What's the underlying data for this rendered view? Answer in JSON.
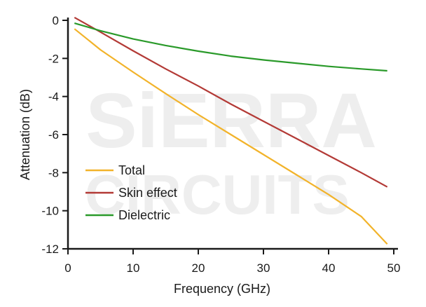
{
  "chart_data": {
    "type": "line",
    "xlabel": "Frequency (GHz)",
    "ylabel": "Attenuation (dB)",
    "xlim": [
      0,
      50
    ],
    "ylim": [
      -12,
      0
    ],
    "x_ticks": [
      "0",
      "10",
      "20",
      "30",
      "40",
      "50"
    ],
    "y_ticks": [
      "0",
      "-2",
      "-4",
      "-6",
      "-8",
      "-10",
      "-12"
    ],
    "grid": false,
    "legend_position": "bottom-left",
    "watermark": [
      "SiERRA",
      "CIRCUITS"
    ],
    "series": [
      {
        "name": "Total",
        "color": "#f2b32a",
        "x": [
          1,
          5,
          10,
          15,
          20,
          25,
          30,
          35,
          40,
          45,
          49
        ],
        "y": [
          -0.45,
          -1.55,
          -2.72,
          -3.85,
          -4.95,
          -6.0,
          -7.05,
          -8.1,
          -9.15,
          -10.3,
          -11.75
        ]
      },
      {
        "name": "Skin effect",
        "color": "#b33a36",
        "x": [
          1,
          5,
          10,
          15,
          20,
          25,
          30,
          35,
          40,
          45,
          49
        ],
        "y": [
          0.15,
          -0.62,
          -1.6,
          -2.55,
          -3.45,
          -4.4,
          -5.3,
          -6.2,
          -7.1,
          -8.0,
          -8.75
        ]
      },
      {
        "name": "Dielectric",
        "color": "#2a9a2a",
        "x": [
          1,
          5,
          10,
          15,
          20,
          25,
          30,
          35,
          40,
          45,
          49
        ],
        "y": [
          -0.15,
          -0.55,
          -0.98,
          -1.32,
          -1.62,
          -1.88,
          -2.08,
          -2.25,
          -2.42,
          -2.55,
          -2.65
        ]
      }
    ]
  }
}
